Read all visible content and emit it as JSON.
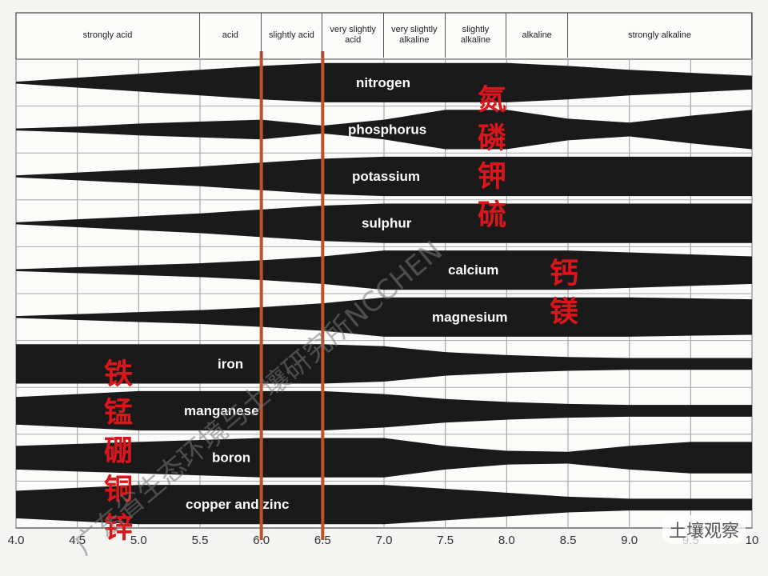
{
  "chart_data": {
    "type": "band",
    "zones": [
      {
        "label": "strongly acid",
        "from": 4,
        "to": 5.5
      },
      {
        "label": "acid",
        "from": 5.5,
        "to": 6
      },
      {
        "label": "slightly acid",
        "from": 6,
        "to": 6.5
      },
      {
        "label": "very slightly acid",
        "from": 6.5,
        "to": 7
      },
      {
        "label": "very slightly alkaline",
        "from": 7,
        "to": 7.5
      },
      {
        "label": "slightly alkaline",
        "from": 7.5,
        "to": 8
      },
      {
        "label": "alkaline",
        "from": 8,
        "to": 8.5
      },
      {
        "label": "strongly alkaline",
        "from": 8.5,
        "to": 10
      }
    ],
    "x": [
      4,
      4.5,
      5,
      5.5,
      6,
      6.5,
      7,
      7.5,
      8,
      8.5,
      9,
      9.5,
      10
    ],
    "xlim": [
      4,
      10
    ],
    "xticks": [
      {
        "value": 4,
        "label": "4.0"
      },
      4.5,
      {
        "value": 5,
        "label": "5.0"
      },
      5.5,
      {
        "value": 6,
        "label": "6.0"
      },
      6.5,
      {
        "value": 7,
        "label": "7.0"
      },
      7.5,
      {
        "value": 8,
        "label": "8.0"
      },
      8.5,
      {
        "value": 9,
        "label": "9.0"
      },
      9.5,
      10
    ],
    "grid": true,
    "color": "#1a1a1a",
    "series": [
      {
        "name": "nitrogen",
        "values": [
          0.05,
          0.25,
          0.45,
          0.65,
          0.85,
          1,
          1,
          1,
          1,
          0.85,
          0.65,
          0.5,
          0.35
        ]
      },
      {
        "name": "phosphorus",
        "values": [
          0.05,
          0.15,
          0.3,
          0.4,
          0.5,
          0.2,
          0.5,
          1,
          1,
          0.55,
          0.35,
          0.7,
          1
        ]
      },
      {
        "name": "potassium",
        "values": [
          0.05,
          0.2,
          0.35,
          0.5,
          0.7,
          0.9,
          1,
          1,
          1,
          1,
          1,
          1,
          1
        ]
      },
      {
        "name": "sulphur",
        "values": [
          0.05,
          0.2,
          0.35,
          0.5,
          0.7,
          0.9,
          1,
          1,
          1,
          1,
          1,
          1,
          1
        ]
      },
      {
        "name": "calcium",
        "values": [
          0.05,
          0.15,
          0.25,
          0.35,
          0.5,
          0.7,
          1,
          1,
          1,
          1,
          0.9,
          0.8,
          0.7
        ]
      },
      {
        "name": "magnesium",
        "values": [
          0.05,
          0.15,
          0.25,
          0.35,
          0.5,
          0.7,
          1,
          1,
          1,
          1,
          1,
          0.95,
          0.9
        ]
      },
      {
        "name": "iron",
        "values": [
          1,
          1,
          1,
          1,
          1,
          1,
          0.9,
          0.6,
          0.45,
          0.35,
          0.3,
          0.3,
          0.3
        ]
      },
      {
        "name": "manganese",
        "values": [
          0.7,
          0.85,
          1,
          1,
          1,
          1,
          0.85,
          0.6,
          0.45,
          0.35,
          0.3,
          0.3,
          0.3
        ]
      },
      {
        "name": "boron",
        "values": [
          0.6,
          0.7,
          0.8,
          0.9,
          1,
          1,
          1,
          0.6,
          0.35,
          0.3,
          0.6,
          0.8,
          0.8
        ]
      },
      {
        "name": "copper and zinc",
        "values": [
          0.7,
          0.85,
          1,
          1,
          1,
          1,
          1,
          0.8,
          0.6,
          0.4,
          0.3,
          0.3,
          0.3
        ]
      }
    ],
    "highlight_lines": {
      "x": [
        6,
        6.5
      ],
      "color": "#c0502a"
    },
    "annotations": [
      "氮磷钾硫",
      "钙镁",
      "铁锰硼铜锌"
    ],
    "watermark": "广东省生态环境与土壤研究所NCCHEN",
    "logo": "土壤观察"
  }
}
